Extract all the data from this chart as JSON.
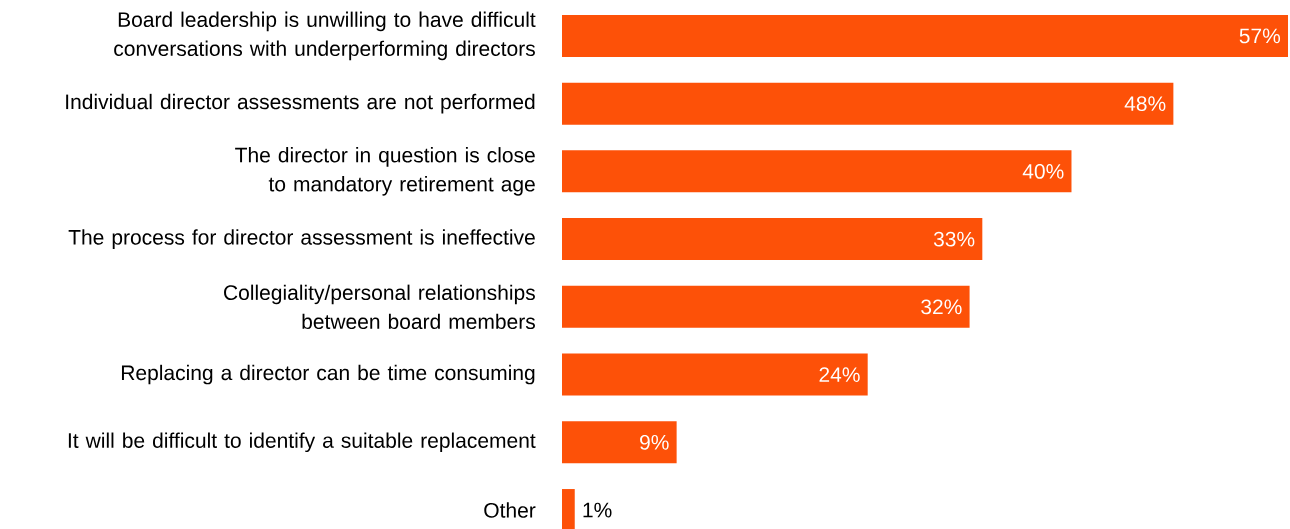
{
  "chart_data": {
    "type": "bar",
    "orientation": "horizontal",
    "categories": [
      "Board leadership is unwilling to have difficult conversations with underperforming directors",
      "Individual director assessments are not performed",
      "The director in question is close to mandatory retirement age",
      "The process for director assessment is ineffective",
      "Collegiality/personal relationships between board members",
      "Replacing a director can be time consuming",
      "It will be difficult to identify a suitable replacement",
      "Other"
    ],
    "values": [
      57,
      48,
      40,
      33,
      32,
      24,
      9,
      1
    ],
    "value_labels": [
      "57%",
      "48%",
      "40%",
      "33%",
      "32%",
      "24%",
      "9%",
      "1%"
    ],
    "color": "#fd5108"
  }
}
